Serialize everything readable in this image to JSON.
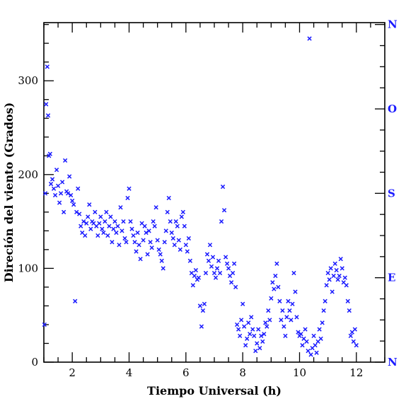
{
  "chart_data": {
    "type": "scatter",
    "xlabel": "Tiempo Universal (h)",
    "ylabel": "Direción del viento (Grados)",
    "xlim": [
      1,
      13
    ],
    "ylim": [
      0,
      362
    ],
    "x_ticks": [
      "2",
      "4",
      "6",
      "8",
      "10",
      "12"
    ],
    "y_ticks": [
      "0",
      "100",
      "200",
      "300"
    ],
    "right_axis_labels": [
      {
        "text": "N",
        "value": 0
      },
      {
        "text": "E",
        "value": 90
      },
      {
        "text": "S",
        "value": 180
      },
      {
        "text": "O",
        "value": 270
      },
      {
        "text": "N",
        "value": 360
      }
    ],
    "marker": "x",
    "marker_color": "#1a1aff",
    "grid": false,
    "series": [
      {
        "points": [
          [
            1.02,
            40
          ],
          [
            1.05,
            180
          ],
          [
            1.08,
            275
          ],
          [
            1.12,
            315
          ],
          [
            1.15,
            263
          ],
          [
            1.18,
            220
          ],
          [
            1.22,
            222
          ],
          [
            1.25,
            190
          ],
          [
            1.3,
            195
          ],
          [
            1.35,
            185
          ],
          [
            1.4,
            178
          ],
          [
            1.45,
            205
          ],
          [
            1.5,
            188
          ],
          [
            1.55,
            170
          ],
          [
            1.6,
            180
          ],
          [
            1.65,
            192
          ],
          [
            1.7,
            160
          ],
          [
            1.75,
            215
          ],
          [
            1.8,
            182
          ],
          [
            1.85,
            180
          ],
          [
            1.9,
            198
          ],
          [
            1.95,
            178
          ],
          [
            2.0,
            172
          ],
          [
            2.05,
            168
          ],
          [
            2.1,
            65
          ],
          [
            2.15,
            160
          ],
          [
            2.2,
            185
          ],
          [
            2.25,
            158
          ],
          [
            2.3,
            145
          ],
          [
            2.35,
            138
          ],
          [
            2.4,
            150
          ],
          [
            2.45,
            135
          ],
          [
            2.5,
            148
          ],
          [
            2.55,
            155
          ],
          [
            2.6,
            168
          ],
          [
            2.65,
            142
          ],
          [
            2.7,
            150
          ],
          [
            2.75,
            148
          ],
          [
            2.8,
            160
          ],
          [
            2.85,
            145
          ],
          [
            2.9,
            135
          ],
          [
            2.95,
            148
          ],
          [
            3.0,
            155
          ],
          [
            3.05,
            142
          ],
          [
            3.1,
            138
          ],
          [
            3.15,
            150
          ],
          [
            3.2,
            160
          ],
          [
            3.25,
            135
          ],
          [
            3.3,
            145
          ],
          [
            3.35,
            155
          ],
          [
            3.4,
            128
          ],
          [
            3.45,
            142
          ],
          [
            3.5,
            150
          ],
          [
            3.55,
            138
          ],
          [
            3.6,
            145
          ],
          [
            3.65,
            125
          ],
          [
            3.7,
            165
          ],
          [
            3.75,
            140
          ],
          [
            3.8,
            150
          ],
          [
            3.85,
            132
          ],
          [
            3.9,
            128
          ],
          [
            3.95,
            175
          ],
          [
            4.0,
            185
          ],
          [
            4.05,
            150
          ],
          [
            4.1,
            142
          ],
          [
            4.15,
            135
          ],
          [
            4.2,
            128
          ],
          [
            4.25,
            118
          ],
          [
            4.3,
            138
          ],
          [
            4.35,
            125
          ],
          [
            4.4,
            110
          ],
          [
            4.45,
            148
          ],
          [
            4.5,
            130
          ],
          [
            4.55,
            145
          ],
          [
            4.6,
            138
          ],
          [
            4.65,
            115
          ],
          [
            4.7,
            140
          ],
          [
            4.75,
            128
          ],
          [
            4.8,
            122
          ],
          [
            4.85,
            150
          ],
          [
            4.9,
            145
          ],
          [
            4.95,
            165
          ],
          [
            5.0,
            130
          ],
          [
            5.05,
            120
          ],
          [
            5.1,
            115
          ],
          [
            5.15,
            108
          ],
          [
            5.2,
            100
          ],
          [
            5.25,
            128
          ],
          [
            5.3,
            140
          ],
          [
            5.35,
            160
          ],
          [
            5.4,
            175
          ],
          [
            5.45,
            150
          ],
          [
            5.5,
            138
          ],
          [
            5.55,
            132
          ],
          [
            5.6,
            125
          ],
          [
            5.65,
            150
          ],
          [
            5.7,
            145
          ],
          [
            5.75,
            130
          ],
          [
            5.8,
            120
          ],
          [
            5.85,
            155
          ],
          [
            5.9,
            160
          ],
          [
            5.95,
            145
          ],
          [
            6.0,
            125
          ],
          [
            6.05,
            118
          ],
          [
            6.1,
            132
          ],
          [
            6.15,
            108
          ],
          [
            6.2,
            95
          ],
          [
            6.25,
            82
          ],
          [
            6.3,
            92
          ],
          [
            6.35,
            98
          ],
          [
            6.4,
            88
          ],
          [
            6.45,
            90
          ],
          [
            6.5,
            60
          ],
          [
            6.55,
            38
          ],
          [
            6.6,
            55
          ],
          [
            6.65,
            62
          ],
          [
            6.7,
            95
          ],
          [
            6.75,
            115
          ],
          [
            6.8,
            108
          ],
          [
            6.85,
            125
          ],
          [
            6.9,
            102
          ],
          [
            6.95,
            112
          ],
          [
            7.0,
            95
          ],
          [
            7.05,
            90
          ],
          [
            7.1,
            100
          ],
          [
            7.15,
            108
          ],
          [
            7.2,
            95
          ],
          [
            7.25,
            150
          ],
          [
            7.3,
            187
          ],
          [
            7.35,
            162
          ],
          [
            7.4,
            112
          ],
          [
            7.45,
            105
          ],
          [
            7.5,
            100
          ],
          [
            7.55,
            92
          ],
          [
            7.6,
            85
          ],
          [
            7.65,
            95
          ],
          [
            7.7,
            105
          ],
          [
            7.75,
            80
          ],
          [
            7.8,
            40
          ],
          [
            7.85,
            35
          ],
          [
            7.9,
            28
          ],
          [
            7.95,
            45
          ],
          [
            8.0,
            62
          ],
          [
            8.05,
            38
          ],
          [
            8.1,
            18
          ],
          [
            8.15,
            25
          ],
          [
            8.2,
            42
          ],
          [
            8.25,
            30
          ],
          [
            8.3,
            48
          ],
          [
            8.35,
            35
          ],
          [
            8.4,
            28
          ],
          [
            8.45,
            12
          ],
          [
            8.5,
            20
          ],
          [
            8.55,
            35
          ],
          [
            8.6,
            15
          ],
          [
            8.65,
            28
          ],
          [
            8.7,
            22
          ],
          [
            8.75,
            30
          ],
          [
            8.8,
            42
          ],
          [
            8.85,
            38
          ],
          [
            8.9,
            55
          ],
          [
            8.95,
            45
          ],
          [
            9.0,
            68
          ],
          [
            9.05,
            85
          ],
          [
            9.1,
            78
          ],
          [
            9.15,
            92
          ],
          [
            9.2,
            105
          ],
          [
            9.25,
            80
          ],
          [
            9.3,
            65
          ],
          [
            9.35,
            45
          ],
          [
            9.4,
            55
          ],
          [
            9.45,
            38
          ],
          [
            9.5,
            28
          ],
          [
            9.55,
            48
          ],
          [
            9.6,
            65
          ],
          [
            9.65,
            55
          ],
          [
            9.7,
            45
          ],
          [
            9.75,
            62
          ],
          [
            9.8,
            95
          ],
          [
            9.85,
            75
          ],
          [
            9.9,
            48
          ],
          [
            9.95,
            32
          ],
          [
            10.0,
            28
          ],
          [
            10.05,
            30
          ],
          [
            10.1,
            18
          ],
          [
            10.15,
            25
          ],
          [
            10.2,
            35
          ],
          [
            10.25,
            22
          ],
          [
            10.3,
            12
          ],
          [
            10.35,
            345
          ],
          [
            10.4,
            8
          ],
          [
            10.45,
            15
          ],
          [
            10.5,
            28
          ],
          [
            10.55,
            18
          ],
          [
            10.6,
            10
          ],
          [
            10.65,
            22
          ],
          [
            10.7,
            35
          ],
          [
            10.75,
            25
          ],
          [
            10.8,
            42
          ],
          [
            10.85,
            55
          ],
          [
            10.9,
            65
          ],
          [
            10.95,
            82
          ],
          [
            11.0,
            95
          ],
          [
            11.05,
            88
          ],
          [
            11.1,
            100
          ],
          [
            11.15,
            75
          ],
          [
            11.2,
            92
          ],
          [
            11.25,
            105
          ],
          [
            11.3,
            98
          ],
          [
            11.35,
            88
          ],
          [
            11.4,
            92
          ],
          [
            11.45,
            110
          ],
          [
            11.5,
            100
          ],
          [
            11.55,
            85
          ],
          [
            11.6,
            90
          ],
          [
            11.65,
            82
          ],
          [
            11.7,
            65
          ],
          [
            11.75,
            55
          ],
          [
            11.8,
            28
          ],
          [
            11.85,
            32
          ],
          [
            11.9,
            22
          ],
          [
            11.95,
            35
          ],
          [
            12.0,
            18
          ]
        ]
      }
    ]
  }
}
